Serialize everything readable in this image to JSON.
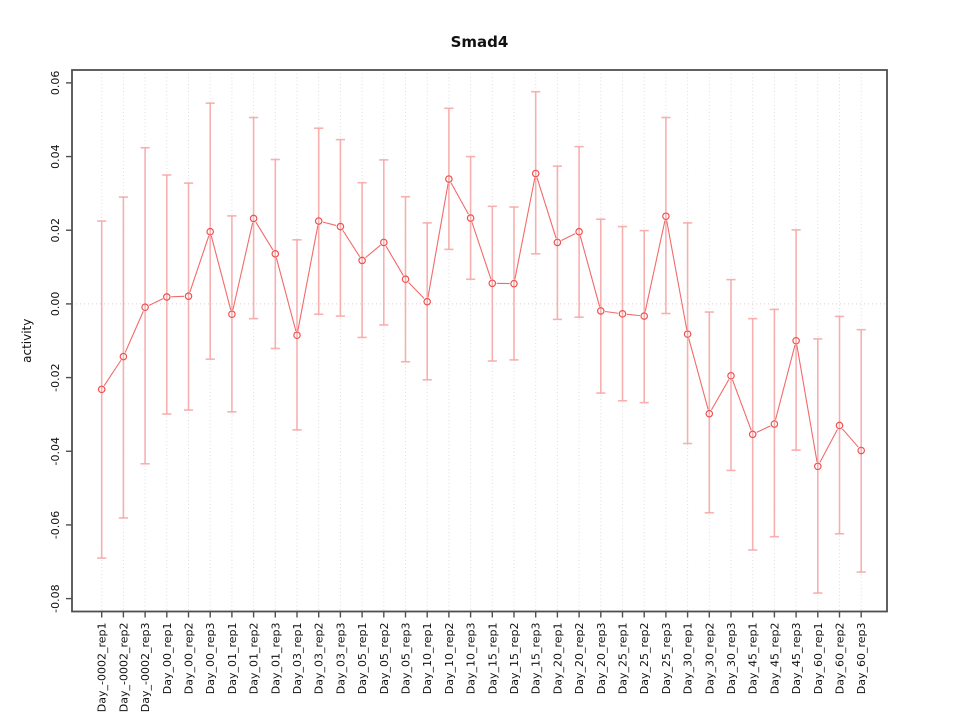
{
  "title": "Smad4",
  "chart_data": {
    "type": "scatter",
    "title": "Smad4",
    "xlabel": "",
    "ylabel": "activity",
    "ylim": [
      -0.0835,
      0.0635
    ],
    "yticks": [
      0.06,
      0.04,
      0.02,
      0.0,
      -0.02,
      -0.04,
      -0.06,
      -0.08
    ],
    "ytick_labels": [
      "0.06",
      "0.04",
      "0.02",
      "0.00",
      "-0.02",
      "-0.04",
      "-0.06",
      "-0.08"
    ],
    "grid": "vertical-dotted-per-category",
    "zero_line": true,
    "legend": "none",
    "categories": [
      "Day_-0002_rep1",
      "Day_-0002_rep2",
      "Day_-0002_rep3",
      "Day_00_rep1",
      "Day_00_rep2",
      "Day_00_rep3",
      "Day_01_rep1",
      "Day_01_rep2",
      "Day_01_rep3",
      "Day_03_rep1",
      "Day_03_rep2",
      "Day_03_rep3",
      "Day_05_rep1",
      "Day_05_rep2",
      "Day_05_rep3",
      "Day_10_rep1",
      "Day_10_rep2",
      "Day_10_rep3",
      "Day_15_rep1",
      "Day_15_rep2",
      "Day_15_rep3",
      "Day_20_rep1",
      "Day_20_rep2",
      "Day_20_rep3",
      "Day_25_rep1",
      "Day_25_rep2",
      "Day_25_rep3",
      "Day_30_rep1",
      "Day_30_rep2",
      "Day_30_rep3",
      "Day_45_rep1",
      "Day_45_rep2",
      "Day_45_rep3",
      "Day_60_rep1",
      "Day_60_rep2",
      "Day_60_rep3"
    ],
    "series": [
      {
        "name": "activity",
        "marker": "open-circle",
        "values": [
          -0.0232,
          -0.0143,
          -0.0009,
          0.0019,
          0.0021,
          0.0196,
          -0.0028,
          0.0232,
          0.0136,
          -0.0085,
          0.0225,
          0.021,
          0.0118,
          0.0167,
          0.0067,
          0.0006,
          0.0339,
          0.0233,
          0.0056,
          0.0055,
          0.0354,
          0.0167,
          0.0196,
          -0.0019,
          -0.0027,
          -0.0033,
          0.0238,
          -0.0082,
          -0.0298,
          -0.0195,
          -0.0354,
          -0.0326,
          -0.01,
          -0.0441,
          -0.033,
          -0.0398
        ],
        "error_high": [
          0.0225,
          0.029,
          0.0424,
          0.035,
          0.0328,
          0.0545,
          0.0239,
          0.0506,
          0.0392,
          0.0174,
          0.0477,
          0.0446,
          0.0329,
          0.0391,
          0.0291,
          0.022,
          0.0531,
          0.04,
          0.0265,
          0.0263,
          0.0576,
          0.0374,
          0.0427,
          0.023,
          0.021,
          0.0199,
          0.0506,
          0.022,
          -0.0022,
          0.0066,
          -0.004,
          -0.0015,
          0.0201,
          -0.0095,
          -0.0034,
          -0.007
        ],
        "error_low": [
          -0.069,
          -0.0581,
          -0.0434,
          -0.0299,
          -0.0288,
          -0.015,
          -0.0293,
          -0.004,
          -0.0121,
          -0.0342,
          -0.0028,
          -0.0033,
          -0.0091,
          -0.0057,
          -0.0157,
          -0.0206,
          0.0148,
          0.0067,
          -0.0155,
          -0.0152,
          0.0136,
          -0.0042,
          -0.0036,
          -0.0242,
          -0.0263,
          -0.0268,
          -0.0026,
          -0.0379,
          -0.0567,
          -0.0452,
          -0.0668,
          -0.0632,
          -0.0397,
          -0.0785,
          -0.0624,
          -0.0728
        ]
      }
    ],
    "colors": {
      "point": "#ef5151",
      "line": "#f26a6a",
      "error_bar": "#f7a3a3",
      "box": "#4f4f4f",
      "grid": "#d9d9d9",
      "zero_line": "#e3cbcb",
      "text": "#111111"
    }
  }
}
